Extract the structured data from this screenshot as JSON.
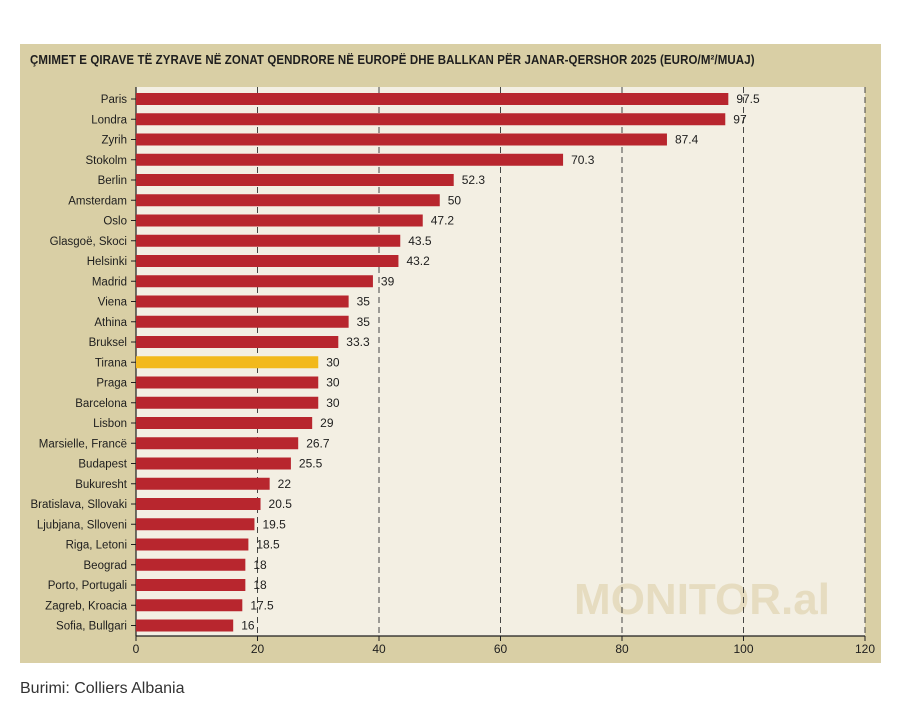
{
  "chart_data": {
    "type": "bar",
    "orientation": "horizontal",
    "title": "ÇMIMET E QIRAVE TË ZYRAVE NË ZONAT QENDRORE NË EUROPË DHE BALLKAN PËR JANAR-QERSHOR 2025 (EURO/M²/MUAJ)",
    "categories": [
      "Paris",
      "Londra",
      "Zyrih",
      "Stokolm",
      "Berlin",
      "Amsterdam",
      "Oslo",
      "Glasgoë, Skoci",
      "Helsinki",
      "Madrid",
      "Viena",
      "Athina",
      "Bruksel",
      "Tirana",
      "Praga",
      "Barcelona",
      "Lisbon",
      "Marsielle, Francë",
      "Budapest",
      "Bukuresht",
      "Bratislava, Sllovaki",
      "Ljubjana, Slloveni",
      "Riga, Letoni",
      "Beograd",
      "Porto, Portugali",
      "Zagreb, Kroacia",
      "Sofia, Bullgari"
    ],
    "values": [
      97.5,
      97,
      87.4,
      70.3,
      52.3,
      50,
      47.2,
      43.5,
      43.2,
      39,
      35,
      35,
      33.3,
      30,
      30,
      30,
      29,
      26.7,
      25.5,
      22,
      20.5,
      19.5,
      18.5,
      18,
      18,
      17.5,
      16
    ],
    "value_labels": [
      "97.5",
      "97",
      "87.4",
      "70.3",
      "52.3",
      "50",
      "47.2",
      "43.5",
      "43.2",
      "39",
      "35",
      "35",
      "33.3",
      "30",
      "30",
      "30",
      "29",
      "26.7",
      "25.5",
      "22",
      "20.5",
      "19.5",
      "18.5",
      "18",
      "18",
      "17.5",
      "16"
    ],
    "highlight": "Tirana",
    "xlim": [
      0,
      120
    ],
    "xticks": [
      "0",
      "20",
      "40",
      "60",
      "80",
      "100",
      "120"
    ],
    "grid": "vertical dashed",
    "colors": {
      "bar": "#b8262e",
      "highlight": "#f2b91c",
      "plot_bg": "#f3efe3",
      "frame_bg": "#d9cfa5",
      "axis": "#1e1e1e"
    }
  },
  "watermark": "MONITOR.al",
  "source": "Burimi: Colliers Albania"
}
